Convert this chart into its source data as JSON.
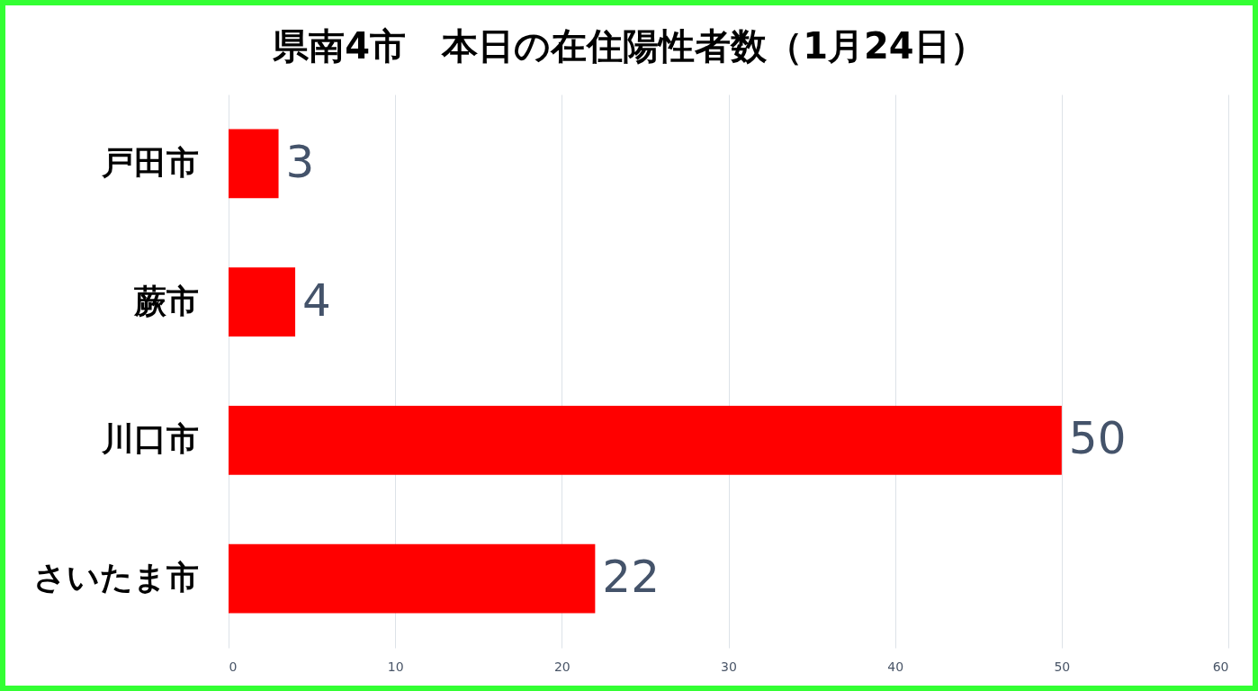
{
  "chart_data": {
    "type": "bar",
    "orientation": "horizontal",
    "title": "県南4市　本日の在住陽性者数（1月24日）",
    "categories": [
      "戸田市",
      "蕨市",
      "川口市",
      "さいたま市"
    ],
    "values": [
      3,
      4,
      50,
      22
    ],
    "color": "#ff0000",
    "xlim": [
      0,
      60
    ],
    "xticks": [
      0,
      10,
      20,
      30,
      40,
      50,
      60
    ],
    "grid": "x",
    "data_labels": true
  }
}
